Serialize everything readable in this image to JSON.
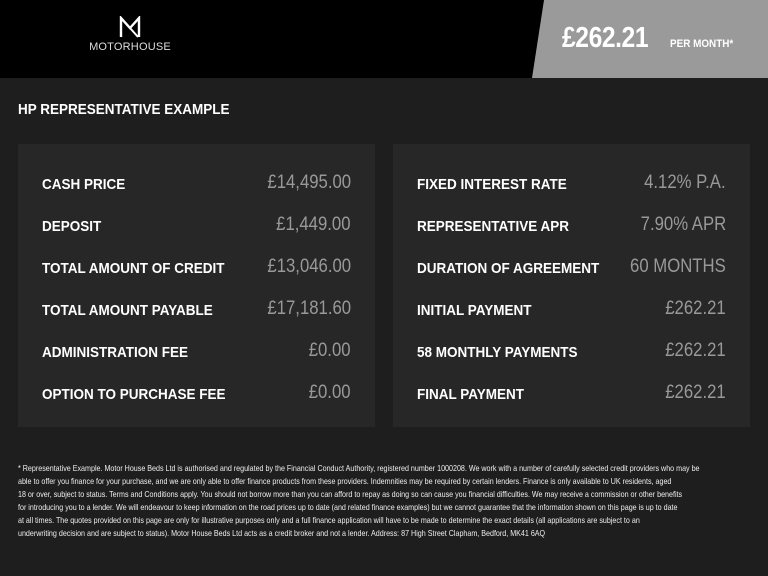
{
  "header": {
    "logo_text": "MOTORHOUSE",
    "monthly_price": "£262.21",
    "per_month_label": "PER MONTH*"
  },
  "section_title": "HP REPRESENTATIVE EXAMPLE",
  "left_panel": [
    {
      "label": "CASH PRICE",
      "value": "£14,495.00"
    },
    {
      "label": "DEPOSIT",
      "value": "£1,449.00"
    },
    {
      "label": "TOTAL AMOUNT OF CREDIT",
      "value": "£13,046.00"
    },
    {
      "label": "TOTAL AMOUNT PAYABLE",
      "value": "£17,181.60"
    },
    {
      "label": "ADMINISTRATION FEE",
      "value": "£0.00"
    },
    {
      "label": "OPTION TO PURCHASE FEE",
      "value": "£0.00"
    }
  ],
  "right_panel": [
    {
      "label": "FIXED INTEREST RATE",
      "value": "4.12% P.A."
    },
    {
      "label": "REPRESENTATIVE APR",
      "value": "7.90% APR"
    },
    {
      "label": "DURATION OF AGREEMENT",
      "value": "60 MONTHS"
    },
    {
      "label": "INITIAL PAYMENT",
      "value": "£262.21"
    },
    {
      "label": "58 MONTHLY PAYMENTS",
      "value": "£262.21"
    },
    {
      "label": "FINAL PAYMENT",
      "value": "£262.21"
    }
  ],
  "footer_lines": [
    "* Representative Example. Motor House Beds Ltd is authorised and regulated by the Financial Conduct Authority, registered number 1000208. We work with a number of carefully selected credit providers who may be",
    "able to offer you finance for your purchase, and we are only able to offer finance products from these providers. Indemnities may be required by certain lenders. Finance is only available to UK residents, aged",
    "18 or over, subject to status. Terms and Conditions apply. You should not borrow more than you can afford to repay as doing so can cause you financial difficulties. We may receive a commission or other benefits",
    "for introducing you to a lender. We will endeavour to keep information on the road prices up to date (and related finance examples) but we cannot guarantee that the information shown on this page is up to date",
    "at all times. The quotes provided on this page are only for illustrative purposes only and a full finance application will have to be made to determine the exact details (all applications are subject to an",
    "underwriting decision and are subject to status). Motor House Beds Ltd acts as a credit broker and not a lender. Address: 87 High Street Clapham, Bedford, MK41 6AQ"
  ]
}
